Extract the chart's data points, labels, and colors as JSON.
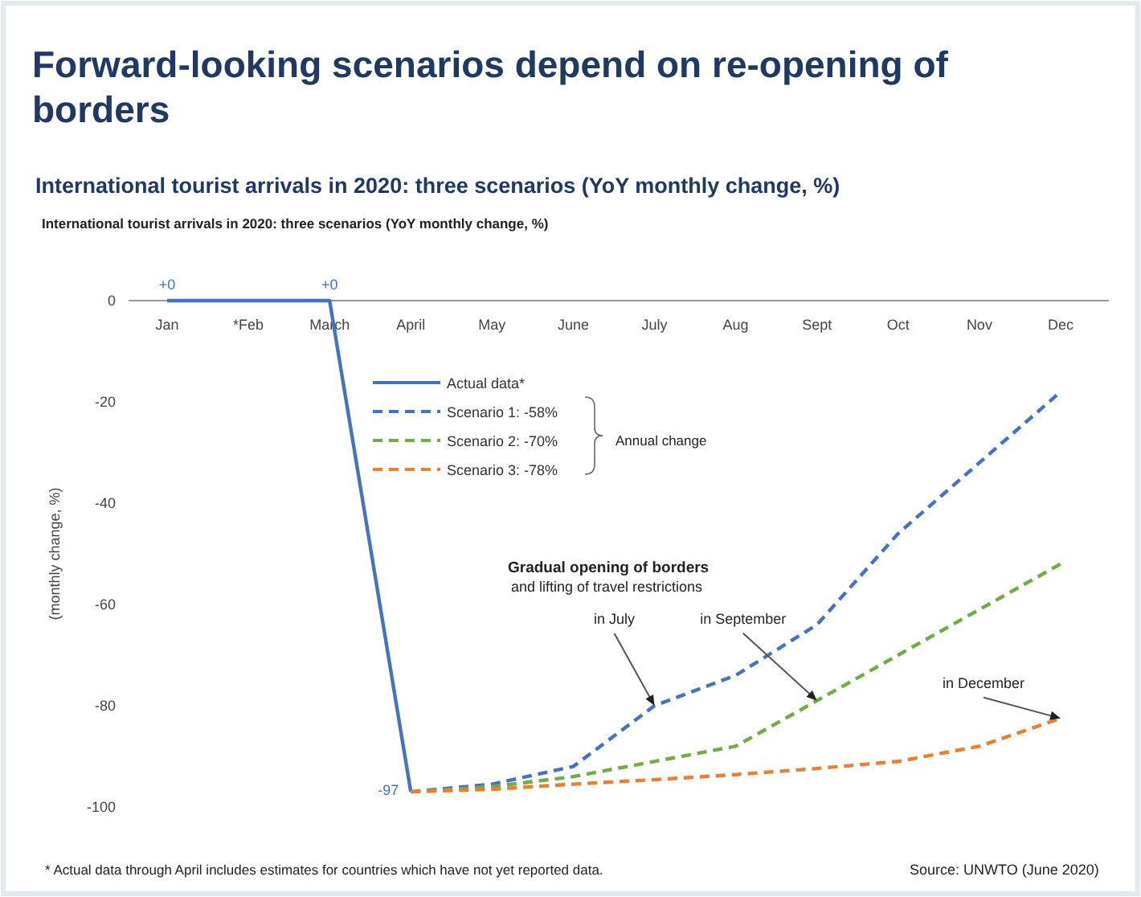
{
  "chart_data": {
    "type": "line",
    "title": "Forward-looking scenarios depend on re-opening of borders",
    "subtitle": "International tourist arrivals in 2020: three scenarios (YoY monthly change, %)",
    "ylabel": "(monthly change, %)",
    "categories": [
      "Jan",
      "*Feb",
      "March",
      "April",
      "May",
      "June",
      "July",
      "Aug",
      "Sept",
      "Oct",
      "Nov",
      "Dec"
    ],
    "series": [
      {
        "name": "Actual data*",
        "color": "#4472c4",
        "line_style": "solid",
        "values": [
          0,
          0,
          0,
          -97,
          null,
          null,
          null,
          null,
          null,
          null,
          null,
          null
        ],
        "value_labels": [
          "+0",
          null,
          "+0",
          "-97",
          null,
          null,
          null,
          null,
          null,
          null,
          null,
          null
        ]
      },
      {
        "name": "Scenario 1:  -58%",
        "color": "#4472c4",
        "line_style": "dashed",
        "values": [
          null,
          null,
          null,
          -97,
          -95.5,
          -92,
          -80,
          -74,
          -64,
          -46,
          -32,
          -18
        ]
      },
      {
        "name": "Scenario 2:  -70%",
        "color": "#70ad47",
        "line_style": "dashed",
        "values": [
          null,
          null,
          null,
          -97,
          -96,
          -94,
          -91,
          -88,
          -79,
          -70,
          -61,
          -52
        ]
      },
      {
        "name": "Scenario 3:  -78%",
        "color": "#ed7d31",
        "line_style": "dashed",
        "values": [
          null,
          null,
          null,
          -97,
          -96.5,
          -95.5,
          -94.6,
          -93.6,
          -92.4,
          -91,
          -88,
          -82.5
        ]
      }
    ],
    "ylim": [
      -100,
      0
    ],
    "yticks": [
      0,
      -20,
      -40,
      -60,
      -80,
      -100
    ],
    "grid": false,
    "legend": "top",
    "marker": "none",
    "annotations": [
      "International tourist arrivals in 2020: three scenarios (YoY monthly change, %)",
      "Annual change",
      "Gradual opening of borders",
      "and lifting of travel restrictions",
      {
        "text": "in July",
        "x": "July",
        "y": -80
      },
      {
        "text": "in September",
        "x": "Sept",
        "y": -79
      },
      {
        "text": "in December",
        "x": "Dec",
        "y": -82.5
      },
      "* Actual data through April includes estimates for countries which have not yet reported data.",
      "Source: UNWTO (June 2020)"
    ]
  }
}
